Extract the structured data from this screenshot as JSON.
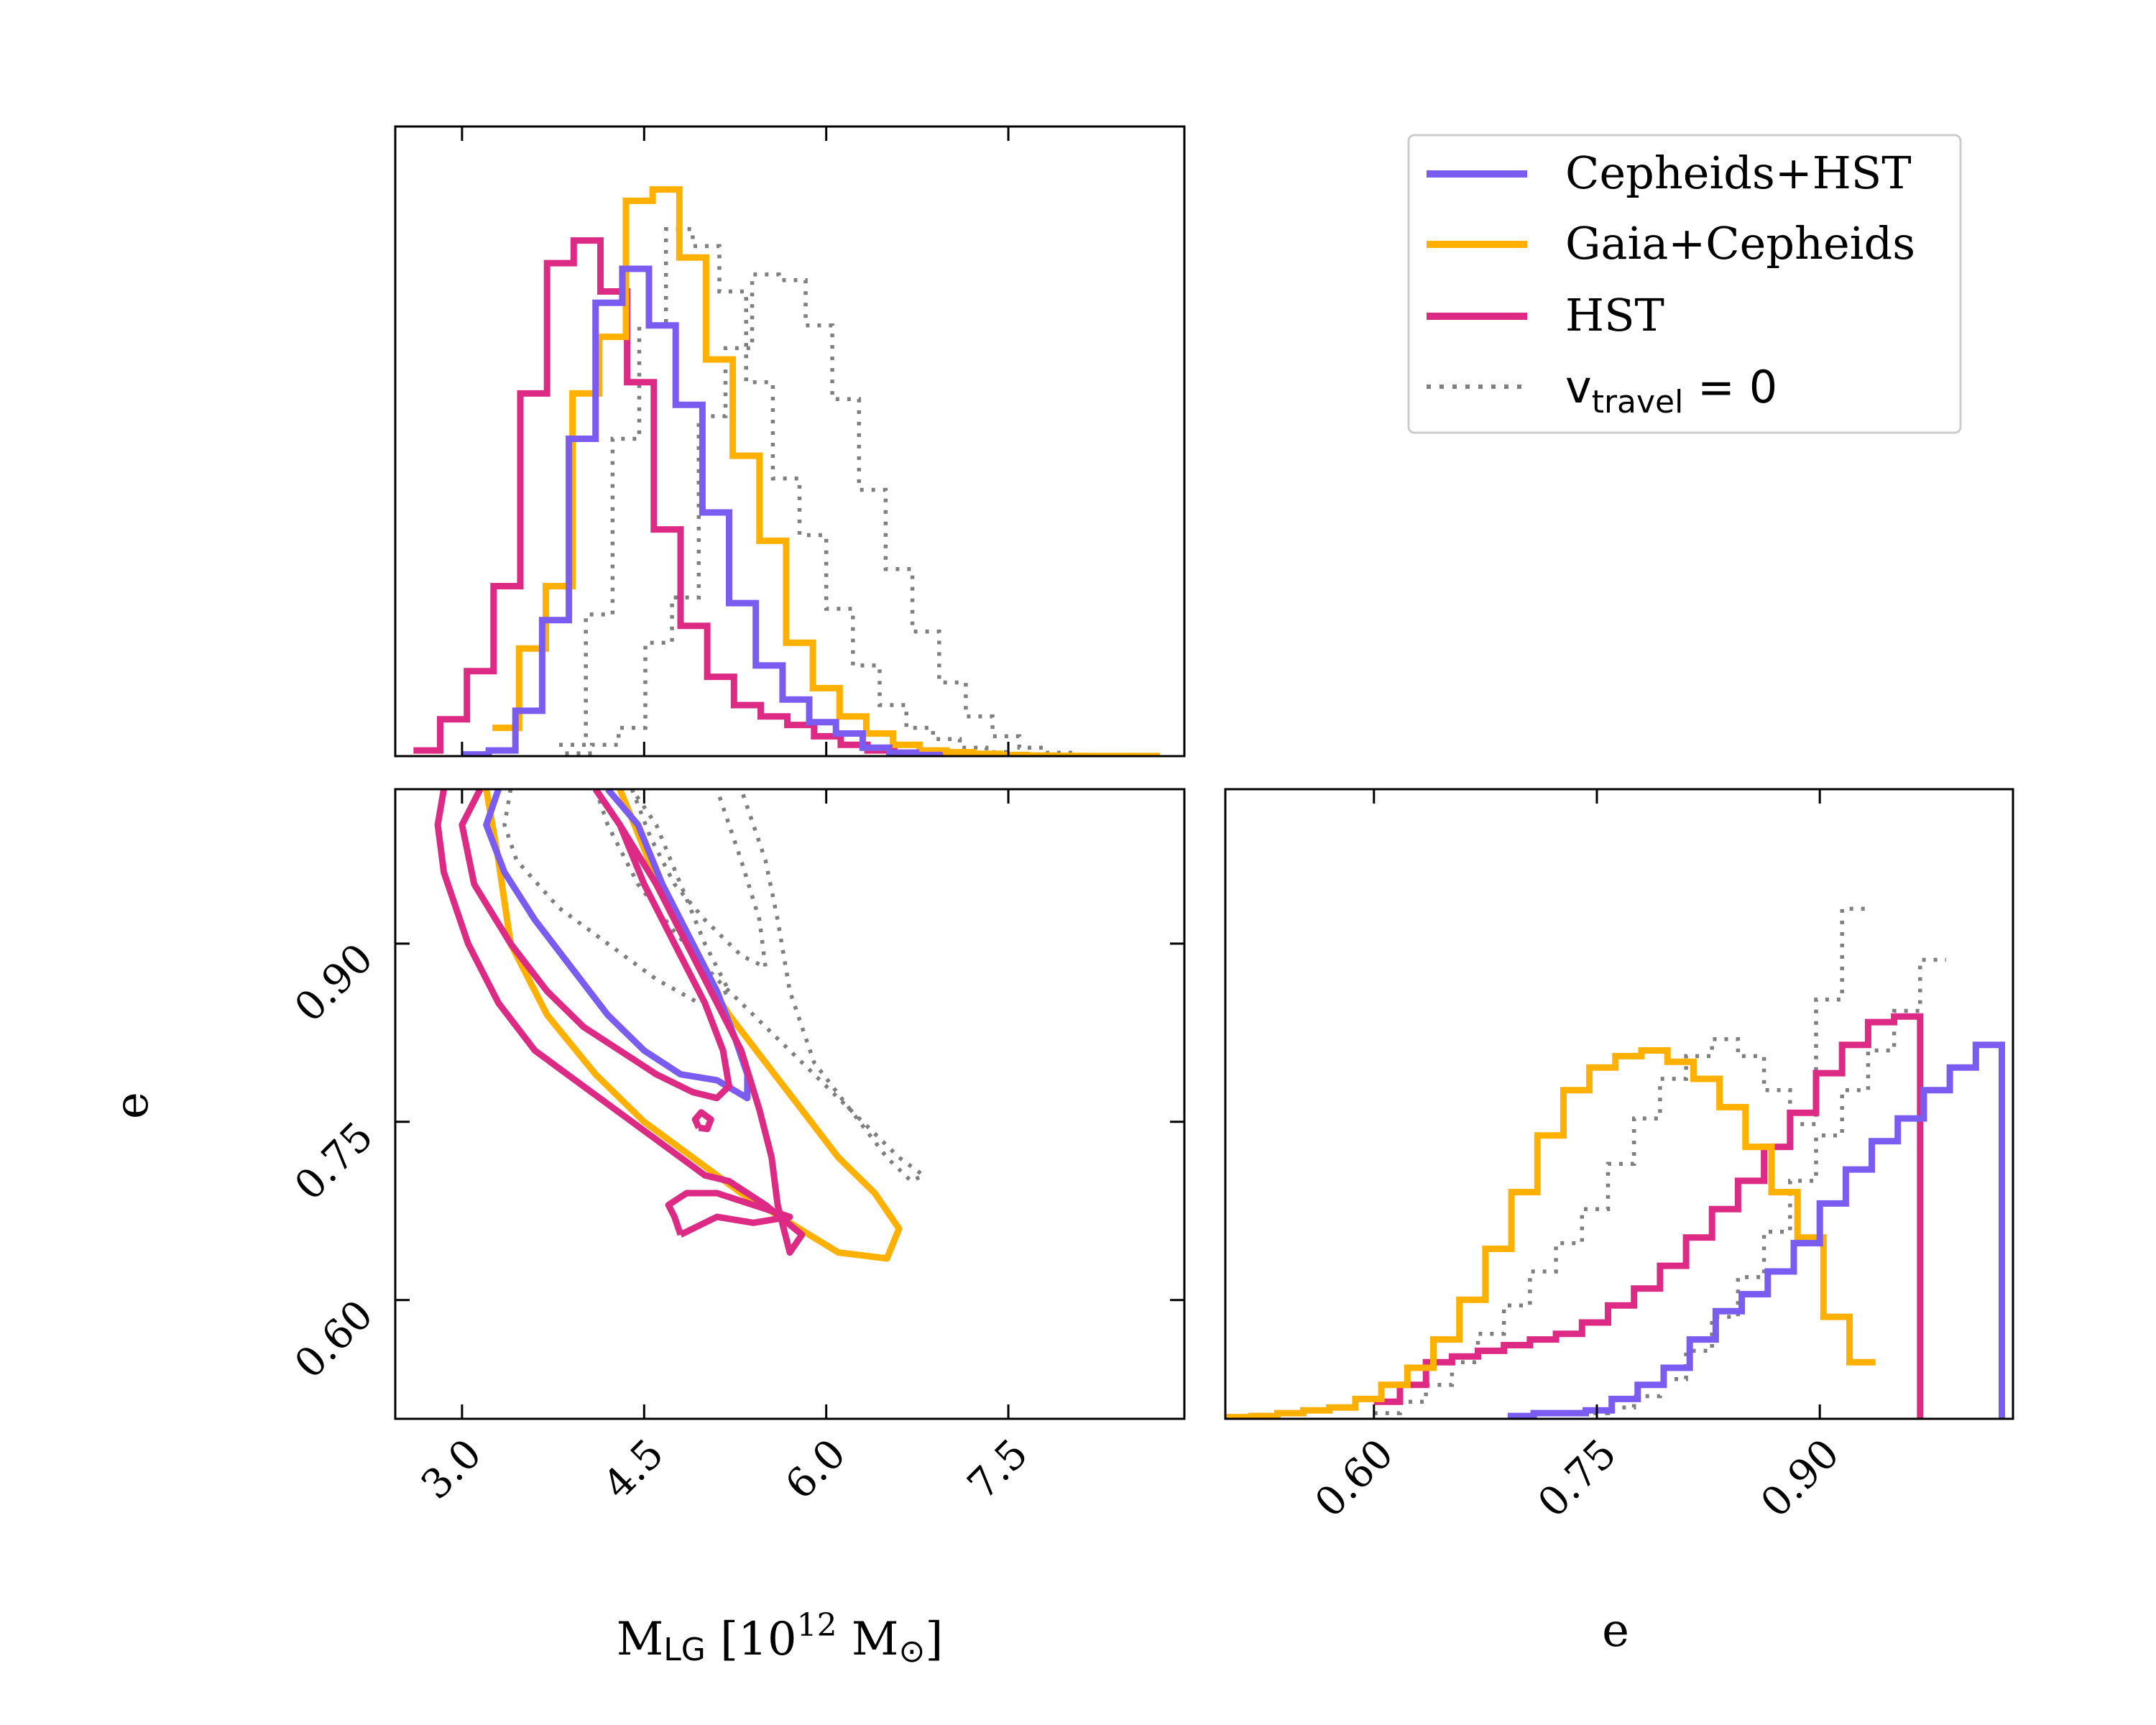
{
  "chart_data": {
    "type": "corner",
    "series_legend": [
      {
        "name": "Cepheids+HST",
        "color": "#7b5cf0",
        "style": "solid"
      },
      {
        "name": "Gaia+Cepheids",
        "color": "#ffb000",
        "style": "solid"
      },
      {
        "name": "HST",
        "color": "#dd2a84",
        "style": "solid"
      },
      {
        "name": "v",
        "sub": "travel",
        "suffix": " = 0",
        "color": "#7f7f7f",
        "style": "dotted"
      }
    ],
    "legend_position": "top-right",
    "x_label": {
      "main": "M",
      "sub": "LG",
      "rest1": " [10",
      "sup": "12",
      "rest2": " M",
      "sun": "⊙",
      "rest3": "]"
    },
    "e_label": "e",
    "m_ticks": [
      "3.0",
      "4.5",
      "6.0",
      "7.5"
    ],
    "e_ticks": [
      "0.60",
      "0.75",
      "0.90"
    ],
    "m_range": [
      2.45,
      8.95
    ],
    "e_range": [
      0.5,
      1.03
    ],
    "hist_M": {
      "bin_width": 0.22,
      "series": [
        {
          "name": "Cepheids+HST",
          "start": 3.0,
          "values": [
            0.003,
            0.01,
            0.08,
            0.24,
            0.56,
            0.8,
            0.86,
            0.76,
            0.62,
            0.43,
            0.27,
            0.16,
            0.1,
            0.06,
            0.04,
            0.015,
            0.006,
            0.002
          ]
        },
        {
          "name": "Gaia+Cepheids",
          "start": 3.25,
          "values": [
            0.05,
            0.19,
            0.3,
            0.64,
            0.74,
            0.98,
            1.0,
            0.88,
            0.7,
            0.53,
            0.38,
            0.2,
            0.12,
            0.07,
            0.04,
            0.02,
            0.01,
            0.007,
            0.004,
            0.002,
            0.001,
            0.0005,
            0.0003,
            0.0002,
            0.0001
          ]
        },
        {
          "name": "HST",
          "start": 2.6,
          "values": [
            0.01,
            0.065,
            0.15,
            0.3,
            0.64,
            0.87,
            0.91,
            0.82,
            0.66,
            0.4,
            0.23,
            0.14,
            0.09,
            0.07,
            0.055,
            0.035,
            0.02,
            0.01,
            0.006,
            0.003
          ]
        },
        {
          "name": "v_travel=0 (a)",
          "start": 3.8,
          "values": [
            0.02,
            0.25,
            0.56,
            0.76,
            0.93,
            0.9,
            0.82,
            0.66,
            0.49,
            0.39,
            0.26,
            0.16,
            0.09,
            0.05,
            0.03,
            0.015,
            0.007,
            0.003,
            0.001
          ]
        },
        {
          "name": "v_travel=0 (b)",
          "start": 3.85,
          "values": [
            0.005,
            0.02,
            0.05,
            0.2,
            0.28,
            0.6,
            0.72,
            0.85,
            0.84,
            0.76,
            0.63,
            0.47,
            0.33,
            0.22,
            0.13,
            0.07,
            0.035,
            0.015,
            0.006,
            0.002
          ]
        }
      ]
    },
    "hist_e": {
      "bin_width": 0.0175,
      "series": [
        {
          "name": "Cepheids+HST",
          "start": 0.69,
          "values": [
            0.005,
            0.01,
            0.01,
            0.015,
            0.035,
            0.06,
            0.09,
            0.14,
            0.19,
            0.22,
            0.26,
            0.31,
            0.38,
            0.44,
            0.49,
            0.53,
            0.58,
            0.62,
            0.66
          ]
        },
        {
          "name": "Gaia+Cepheids",
          "start": 0.5,
          "values": [
            0.003,
            0.005,
            0.01,
            0.015,
            0.02,
            0.035,
            0.06,
            0.09,
            0.14,
            0.21,
            0.3,
            0.4,
            0.5,
            0.58,
            0.62,
            0.64,
            0.65,
            0.63,
            0.6,
            0.55,
            0.48,
            0.4,
            0.32,
            0.18,
            0.1
          ]
        },
        {
          "name": "HST",
          "start": 0.6,
          "values": [
            0.03,
            0.06,
            0.1,
            0.11,
            0.12,
            0.13,
            0.14,
            0.15,
            0.17,
            0.2,
            0.23,
            0.27,
            0.32,
            0.37,
            0.42,
            0.48,
            0.54,
            0.61,
            0.66,
            0.7,
            0.71
          ]
        },
        {
          "name": "v_travel=0 (a)",
          "start": 0.6,
          "values": [
            0.01,
            0.03,
            0.06,
            0.1,
            0.15,
            0.2,
            0.26,
            0.31,
            0.37,
            0.45,
            0.53,
            0.6,
            0.64,
            0.67,
            0.64,
            0.58,
            0.52,
            0.74,
            0.9
          ]
        },
        {
          "name": "v_travel=0 (b)",
          "start": 0.74,
          "values": [
            0.01,
            0.02,
            0.04,
            0.07,
            0.12,
            0.18,
            0.25,
            0.33,
            0.42,
            0.5,
            0.58,
            0.65,
            0.72,
            0.81
          ]
        }
      ]
    },
    "contours": [
      {
        "name": "HST",
        "points": [
          [
            2.85,
            1.03
          ],
          [
            2.8,
            1.0
          ],
          [
            2.85,
            0.96
          ],
          [
            3.05,
            0.9
          ],
          [
            3.3,
            0.85
          ],
          [
            3.6,
            0.81
          ],
          [
            4.0,
            0.78
          ],
          [
            4.4,
            0.75
          ],
          [
            4.8,
            0.72
          ],
          [
            5.0,
            0.705
          ],
          [
            5.2,
            0.7
          ],
          [
            5.5,
            0.68
          ],
          [
            5.8,
            0.655
          ],
          [
            5.7,
            0.64
          ],
          [
            5.6,
            0.68
          ],
          [
            5.55,
            0.72
          ],
          [
            5.45,
            0.76
          ],
          [
            5.3,
            0.81
          ],
          [
            5.05,
            0.86
          ],
          [
            4.85,
            0.9
          ],
          [
            4.6,
            0.95
          ],
          [
            4.3,
            1.0
          ],
          [
            4.1,
            1.03
          ]
        ]
      },
      {
        "name": "HST",
        "points": [
          [
            3.15,
            1.03
          ],
          [
            3.0,
            1.0
          ],
          [
            3.1,
            0.95
          ],
          [
            3.4,
            0.9
          ],
          [
            3.7,
            0.86
          ],
          [
            4.0,
            0.83
          ],
          [
            4.3,
            0.81
          ],
          [
            4.6,
            0.79
          ],
          [
            4.9,
            0.775
          ],
          [
            5.1,
            0.77
          ],
          [
            5.2,
            0.78
          ],
          [
            5.15,
            0.81
          ],
          [
            5.0,
            0.85
          ],
          [
            4.75,
            0.9
          ],
          [
            4.5,
            0.95
          ],
          [
            4.3,
            1.0
          ],
          [
            4.1,
            1.03
          ]
        ]
      },
      {
        "name": "HST",
        "points": [
          [
            4.8,
            0.655
          ],
          [
            4.75,
            0.67
          ],
          [
            4.7,
            0.68
          ],
          [
            4.85,
            0.69
          ],
          [
            5.1,
            0.69
          ],
          [
            5.4,
            0.68
          ],
          [
            5.7,
            0.67
          ],
          [
            5.4,
            0.665
          ],
          [
            5.1,
            0.67
          ],
          [
            4.9,
            0.66
          ],
          [
            4.8,
            0.655
          ]
        ]
      },
      {
        "name": "HST",
        "points": [
          [
            4.95,
            0.745
          ],
          [
            4.92,
            0.752
          ],
          [
            4.97,
            0.758
          ],
          [
            5.05,
            0.752
          ],
          [
            5.02,
            0.744
          ],
          [
            4.95,
            0.745
          ]
        ]
      },
      {
        "name": "Cepheids+HST",
        "points": [
          [
            3.3,
            1.03
          ],
          [
            3.2,
            1.0
          ],
          [
            3.35,
            0.96
          ],
          [
            3.6,
            0.92
          ],
          [
            3.9,
            0.88
          ],
          [
            4.2,
            0.84
          ],
          [
            4.5,
            0.81
          ],
          [
            4.8,
            0.79
          ],
          [
            5.1,
            0.785
          ],
          [
            5.35,
            0.77
          ],
          [
            5.35,
            0.79
          ],
          [
            5.25,
            0.82
          ],
          [
            5.1,
            0.86
          ],
          [
            4.9,
            0.9
          ],
          [
            4.65,
            0.95
          ],
          [
            4.45,
            1.0
          ],
          [
            4.2,
            1.03
          ]
        ]
      },
      {
        "name": "Gaia+Cepheids",
        "points": [
          [
            3.2,
            1.03
          ],
          [
            3.3,
            0.97
          ],
          [
            3.4,
            0.9
          ],
          [
            3.7,
            0.84
          ],
          [
            4.1,
            0.79
          ],
          [
            4.5,
            0.75
          ],
          [
            4.9,
            0.72
          ],
          [
            5.3,
            0.69
          ],
          [
            5.7,
            0.665
          ],
          [
            6.1,
            0.64
          ],
          [
            6.5,
            0.635
          ],
          [
            6.6,
            0.66
          ],
          [
            6.4,
            0.69
          ],
          [
            6.1,
            0.72
          ],
          [
            5.8,
            0.76
          ],
          [
            5.5,
            0.8
          ],
          [
            5.2,
            0.84
          ],
          [
            4.95,
            0.88
          ],
          [
            4.7,
            0.93
          ],
          [
            4.5,
            0.98
          ],
          [
            4.3,
            1.03
          ]
        ]
      },
      {
        "name": "v_travel=0",
        "points": [
          [
            3.4,
            1.03
          ],
          [
            3.35,
            1.0
          ],
          [
            3.45,
            0.97
          ],
          [
            3.8,
            0.93
          ],
          [
            4.2,
            0.9
          ],
          [
            4.6,
            0.87
          ],
          [
            4.95,
            0.85
          ],
          [
            5.2,
            0.86
          ],
          [
            5.0,
            0.9
          ],
          [
            4.8,
            0.95
          ],
          [
            4.6,
            1.0
          ],
          [
            4.4,
            1.03
          ]
        ]
      },
      {
        "name": "v_travel=0",
        "points": [
          [
            4.1,
            1.03
          ],
          [
            4.2,
            1.0
          ],
          [
            4.45,
            0.95
          ],
          [
            4.75,
            0.91
          ],
          [
            5.1,
            0.87
          ],
          [
            5.5,
            0.83
          ],
          [
            5.9,
            0.79
          ],
          [
            6.3,
            0.75
          ],
          [
            6.6,
            0.72
          ],
          [
            6.8,
            0.705
          ],
          [
            6.7,
            0.7
          ],
          [
            6.5,
            0.72
          ],
          [
            6.2,
            0.76
          ],
          [
            5.9,
            0.8
          ],
          [
            5.7,
            0.86
          ],
          [
            5.6,
            0.92
          ],
          [
            5.5,
            0.97
          ],
          [
            5.3,
            1.03
          ]
        ]
      },
      {
        "name": "v_travel=0",
        "points": [
          [
            4.4,
            1.03
          ],
          [
            4.55,
            0.99
          ],
          [
            4.75,
            0.95
          ],
          [
            5.0,
            0.92
          ],
          [
            5.3,
            0.89
          ],
          [
            5.5,
            0.88
          ],
          [
            5.45,
            0.92
          ],
          [
            5.3,
            0.97
          ],
          [
            5.1,
            1.03
          ]
        ]
      }
    ]
  }
}
